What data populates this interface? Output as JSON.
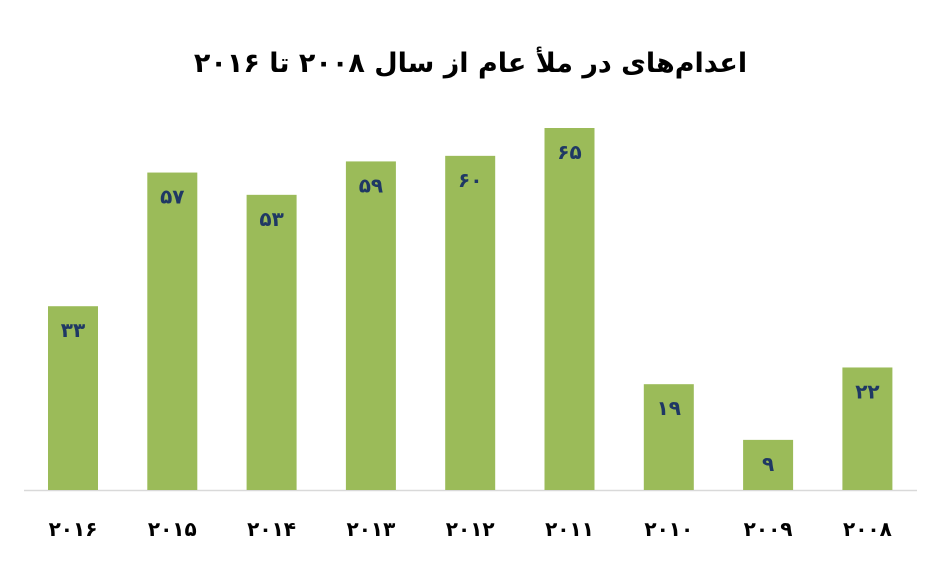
{
  "chart_data": {
    "type": "bar",
    "title": "اعدام‌های در ملأ عام از سال ۲۰۰۸ تا ۲۰۱۶",
    "categories": [
      "۲۰۱۶",
      "۲۰۱۵",
      "۲۰۱۴",
      "۲۰۱۳",
      "۲۰۱۲",
      "۲۰۱۱",
      "۲۰۱۰",
      "۲۰۰۹",
      "۲۰۰۸"
    ],
    "values": [
      33,
      57,
      53,
      59,
      60,
      65,
      19,
      9,
      22
    ],
    "data_labels": [
      "۳۳",
      "۵۷",
      "۵۳",
      "۵۹",
      "۶۰",
      "۶۵",
      "۱۹",
      "۹",
      "۲۲"
    ],
    "xlabel": "",
    "ylabel": "",
    "ylim": [
      0,
      65
    ],
    "grid": false,
    "legend": "none",
    "bar_color": "#9bbb59",
    "label_color": "#1f3864"
  }
}
